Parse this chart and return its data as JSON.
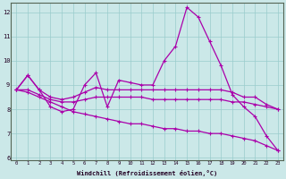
{
  "xlabel": "Windchill (Refroidissement éolien,°C)",
  "background_color": "#cbe8e8",
  "grid_color": "#99cccc",
  "line_color": "#aa00aa",
  "spine_color": "#556655",
  "xlim": [
    -0.5,
    23.5
  ],
  "ylim": [
    5.9,
    12.4
  ],
  "yticks": [
    6,
    7,
    8,
    9,
    10,
    11,
    12
  ],
  "xticks": [
    0,
    1,
    2,
    3,
    4,
    5,
    6,
    7,
    8,
    9,
    10,
    11,
    12,
    13,
    14,
    15,
    16,
    17,
    18,
    19,
    20,
    21,
    22,
    23
  ],
  "series1": [
    8.8,
    9.4,
    8.8,
    8.1,
    7.9,
    8.0,
    9.0,
    9.5,
    8.1,
    9.2,
    9.1,
    9.0,
    9.0,
    10.0,
    10.6,
    12.2,
    11.8,
    10.8,
    9.8,
    8.6,
    8.1,
    7.7,
    6.9,
    6.3
  ],
  "series2": [
    8.8,
    9.4,
    8.8,
    8.5,
    8.4,
    8.5,
    8.7,
    8.9,
    8.8,
    8.8,
    8.8,
    8.8,
    8.8,
    8.8,
    8.8,
    8.8,
    8.8,
    8.8,
    8.8,
    8.7,
    8.5,
    8.5,
    8.2,
    8.0
  ],
  "series3": [
    8.8,
    8.8,
    8.6,
    8.4,
    8.3,
    8.3,
    8.4,
    8.5,
    8.5,
    8.5,
    8.5,
    8.5,
    8.4,
    8.4,
    8.4,
    8.4,
    8.4,
    8.4,
    8.4,
    8.3,
    8.3,
    8.2,
    8.1,
    8.0
  ],
  "series4": [
    8.8,
    8.7,
    8.5,
    8.3,
    8.1,
    7.9,
    7.8,
    7.7,
    7.6,
    7.5,
    7.4,
    7.4,
    7.3,
    7.2,
    7.2,
    7.1,
    7.1,
    7.0,
    7.0,
    6.9,
    6.8,
    6.7,
    6.5,
    6.3
  ]
}
